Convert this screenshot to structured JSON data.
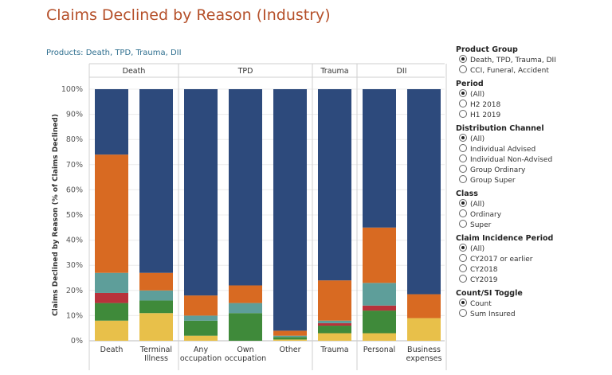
{
  "header": {
    "title": "Claims Declined by Reason (Industry)",
    "subtitle": "Products: Death, TPD, Trauma, DII"
  },
  "filters": [
    {
      "title": "Product Group",
      "options": [
        "Death, TPD, Trauma, DII",
        "CCI, Funeral, Accident"
      ],
      "selected": 0
    },
    {
      "title": "Period",
      "options": [
        "(All)",
        "H2 2018",
        "H1 2019"
      ],
      "selected": 0
    },
    {
      "title": "Distribution Channel",
      "options": [
        "(All)",
        "Individual Advised",
        "Individual Non-Advised",
        "Group Ordinary",
        "Group Super"
      ],
      "selected": 0
    },
    {
      "title": "Class",
      "options": [
        "(All)",
        "Ordinary",
        "Super"
      ],
      "selected": 0
    },
    {
      "title": "Claim Incidence Period",
      "options": [
        "(All)",
        "CY2017 or earlier",
        "CY2018",
        "CY2019"
      ],
      "selected": 0
    },
    {
      "title": "Count/SI Toggle",
      "options": [
        "Count",
        "Sum Insured"
      ],
      "selected": 0
    }
  ],
  "chart_data": {
    "type": "bar",
    "stacked": true,
    "ylabel": "Claims Declined by Reason (% of Claims Declined)",
    "ylim": [
      0,
      100
    ],
    "yticks": [
      "0%",
      "10%",
      "20%",
      "30%",
      "40%",
      "50%",
      "60%",
      "70%",
      "80%",
      "90%",
      "100%"
    ],
    "panels": [
      {
        "name": "Death",
        "categories": [
          [
            "Death"
          ],
          [
            "Terminal",
            "Illness"
          ]
        ]
      },
      {
        "name": "TPD",
        "categories": [
          [
            "Any",
            "occupation"
          ],
          [
            "Own",
            "occupation"
          ],
          [
            "Other"
          ]
        ]
      },
      {
        "name": "Trauma",
        "categories": [
          [
            "Trauma"
          ]
        ]
      },
      {
        "name": "DII",
        "categories": [
          [
            "Personal"
          ],
          [
            "Business",
            "expenses"
          ]
        ]
      }
    ],
    "series": [
      {
        "color": "#e8c04a",
        "values": [
          8,
          11,
          2,
          0,
          0.5,
          3,
          3,
          9
        ]
      },
      {
        "color": "#3f8a3a",
        "values": [
          7,
          5,
          6,
          11,
          1,
          3,
          9,
          0
        ]
      },
      {
        "color": "#b8323b",
        "values": [
          4,
          0,
          0,
          0,
          0,
          1,
          2,
          0
        ]
      },
      {
        "color": "#5e9e9a",
        "values": [
          8,
          4,
          2,
          4,
          0.5,
          1,
          9,
          0
        ]
      },
      {
        "color": "#d86a22",
        "values": [
          47,
          7,
          8,
          7,
          2,
          16,
          22,
          9.5
        ]
      },
      {
        "color": "#2d4a7c",
        "values": [
          26,
          73,
          82,
          78,
          96,
          76,
          55,
          81.5
        ]
      }
    ]
  }
}
